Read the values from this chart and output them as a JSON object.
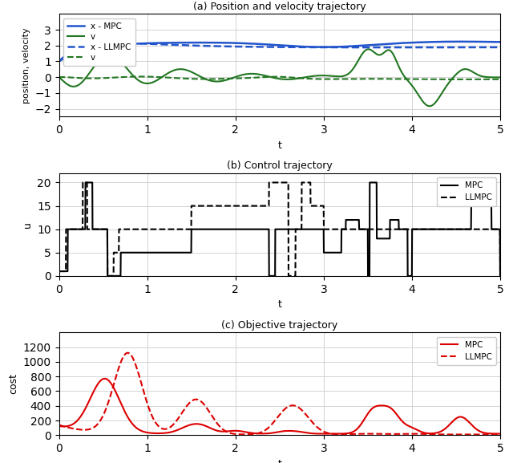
{
  "fig_width": 6.4,
  "fig_height": 5.77,
  "dpi": 100,
  "background_color": "#ffffff",
  "grid_color": "#cccccc",
  "subplot_a": {
    "title": "(a) Position and velocity trajectory",
    "xlabel": "t",
    "ylabel": "position, velocity",
    "ylim": [
      -2.5,
      4.0
    ],
    "xlim": [
      0,
      5
    ],
    "yticks": [
      -2,
      -1,
      0,
      1,
      2,
      3
    ],
    "xticks": [
      0,
      1,
      2,
      3,
      4,
      5
    ],
    "legend": [
      "x - MPC",
      "v",
      "x - LLMPC",
      "v"
    ],
    "blue": "#2255cc",
    "green": "#227722"
  },
  "subplot_b": {
    "title": "(b) Control trajectory",
    "xlabel": "t",
    "ylabel": "u",
    "ylim": [
      0,
      22
    ],
    "xlim": [
      0,
      5
    ],
    "yticks": [
      0,
      5,
      10,
      15,
      20
    ],
    "xticks": [
      0,
      1,
      2,
      3,
      4,
      5
    ],
    "legend": [
      "MPC",
      "LLMPC"
    ],
    "black": "#000000"
  },
  "subplot_c": {
    "title": "(c) Objective trajectory",
    "xlabel": "t",
    "ylabel": "cost",
    "ylim": [
      0,
      1400
    ],
    "xlim": [
      0,
      5
    ],
    "yticks": [
      0,
      200,
      400,
      600,
      800,
      1000,
      1200
    ],
    "xticks": [
      0,
      1,
      2,
      3,
      4,
      5
    ],
    "legend": [
      "MPC",
      "LLMPC"
    ],
    "red": "#dd0000"
  }
}
